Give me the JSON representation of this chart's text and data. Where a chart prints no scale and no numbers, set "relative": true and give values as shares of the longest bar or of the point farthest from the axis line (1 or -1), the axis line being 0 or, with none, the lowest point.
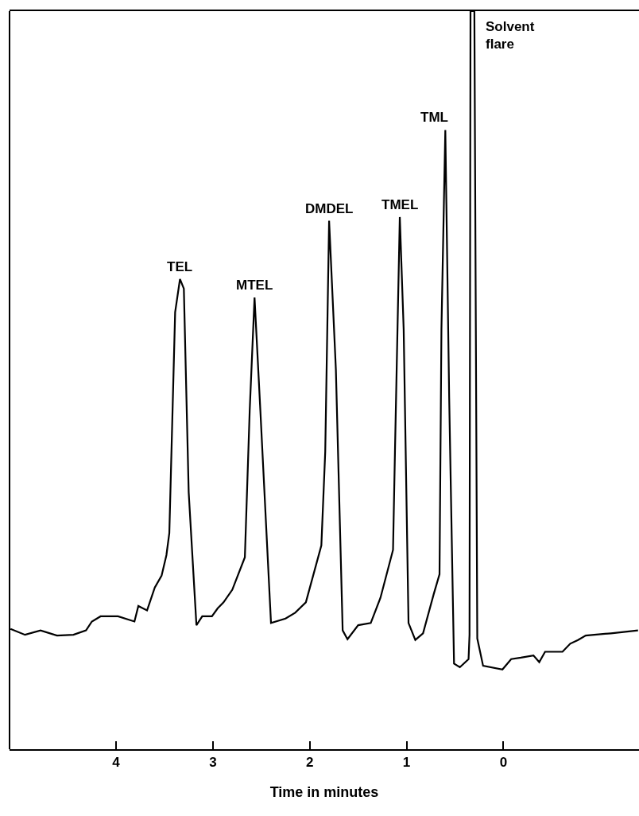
{
  "chart_data": {
    "type": "line",
    "xlabel": "Time in minutes",
    "relative": true,
    "xlim": [
      5.1,
      -1.4
    ],
    "xticks": [
      4,
      3,
      2,
      1,
      0
    ],
    "grid": false,
    "marker": "none",
    "line_style": "solid",
    "x": [
      5.09,
      4.94,
      4.78,
      4.61,
      4.44,
      4.31,
      4.25,
      4.16,
      3.98,
      3.81,
      3.77,
      3.68,
      3.6,
      3.53,
      3.48,
      3.45,
      3.39,
      3.34,
      3.3,
      3.25,
      3.17,
      3.11,
      3.01,
      2.95,
      2.89,
      2.8,
      2.67,
      2.62,
      2.57,
      2.51,
      2.4,
      2.25,
      2.15,
      2.04,
      1.88,
      1.84,
      1.8,
      1.73,
      1.66,
      1.61,
      1.5,
      1.37,
      1.27,
      1.14,
      1.12,
      1.07,
      1.03,
      0.98,
      0.91,
      0.83,
      0.72,
      0.66,
      0.64,
      0.6,
      0.56,
      0.51,
      0.45,
      0.36,
      0.35,
      0.34,
      0.3,
      0.27,
      0.21,
      0.01,
      -0.08,
      -0.18,
      -0.31,
      -0.37,
      -0.43,
      -0.61,
      -0.69,
      -0.77,
      -0.85,
      -1.11,
      -1.39
    ],
    "series": [
      {
        "color": "#000000",
        "values": [
          0.163,
          0.155,
          0.161,
          0.154,
          0.155,
          0.161,
          0.173,
          0.18,
          0.18,
          0.173,
          0.194,
          0.188,
          0.219,
          0.235,
          0.263,
          0.293,
          0.592,
          0.637,
          0.624,
          0.348,
          0.168,
          0.18,
          0.18,
          0.191,
          0.199,
          0.216,
          0.26,
          0.459,
          0.612,
          0.459,
          0.171,
          0.177,
          0.185,
          0.199,
          0.276,
          0.403,
          0.716,
          0.514,
          0.161,
          0.149,
          0.168,
          0.171,
          0.205,
          0.27,
          0.403,
          0.721,
          0.569,
          0.171,
          0.148,
          0.157,
          0.21,
          0.237,
          0.569,
          0.839,
          0.476,
          0.116,
          0.111,
          0.122,
          0.155,
          1.0,
          1.0,
          0.15,
          0.113,
          0.108,
          0.122,
          0.124,
          0.127,
          0.118,
          0.132,
          0.132,
          0.143,
          0.148,
          0.154,
          0.157,
          0.161
        ]
      }
    ],
    "annotations": [
      {
        "text": "TEL",
        "x": 3.34,
        "y": 0.637
      },
      {
        "text": "MTEL",
        "x": 2.57,
        "y": 0.612
      },
      {
        "text": "DMDEL",
        "x": 1.8,
        "y": 0.716
      },
      {
        "text": "TMEL",
        "x": 1.07,
        "y": 0.721
      },
      {
        "text": "TML",
        "x": 0.6,
        "y": 0.839
      },
      {
        "text": "Solvent\nflare",
        "x": 0.3,
        "y": 1.0
      }
    ]
  }
}
